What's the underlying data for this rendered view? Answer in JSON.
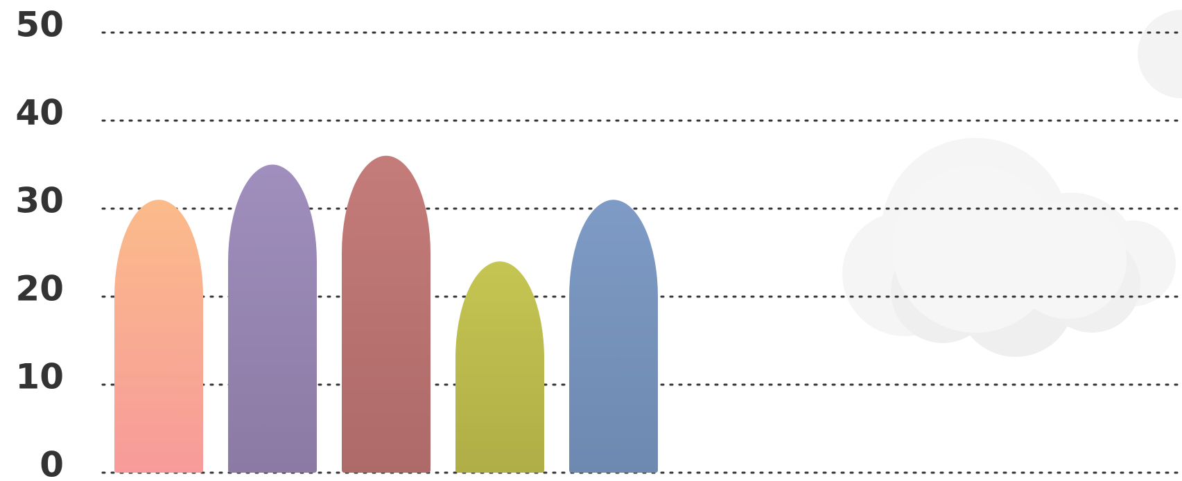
{
  "chart_data": {
    "type": "bar",
    "categories": [
      null,
      null,
      null,
      null,
      null
    ],
    "values": [
      31,
      35,
      36,
      24,
      31
    ],
    "colors": [
      "#fbbb8a",
      "#a08fbe",
      "#c47c7a",
      "#c4c552",
      "#7e9bc6"
    ],
    "colors_bottom": [
      "#f79b9a",
      "#8b7aa3",
      "#ad6a68",
      "#afae47",
      "#6d89b0"
    ],
    "ylim": [
      0,
      50
    ],
    "yticks": [
      0,
      10,
      20,
      30,
      40,
      50
    ],
    "grid": true
  }
}
